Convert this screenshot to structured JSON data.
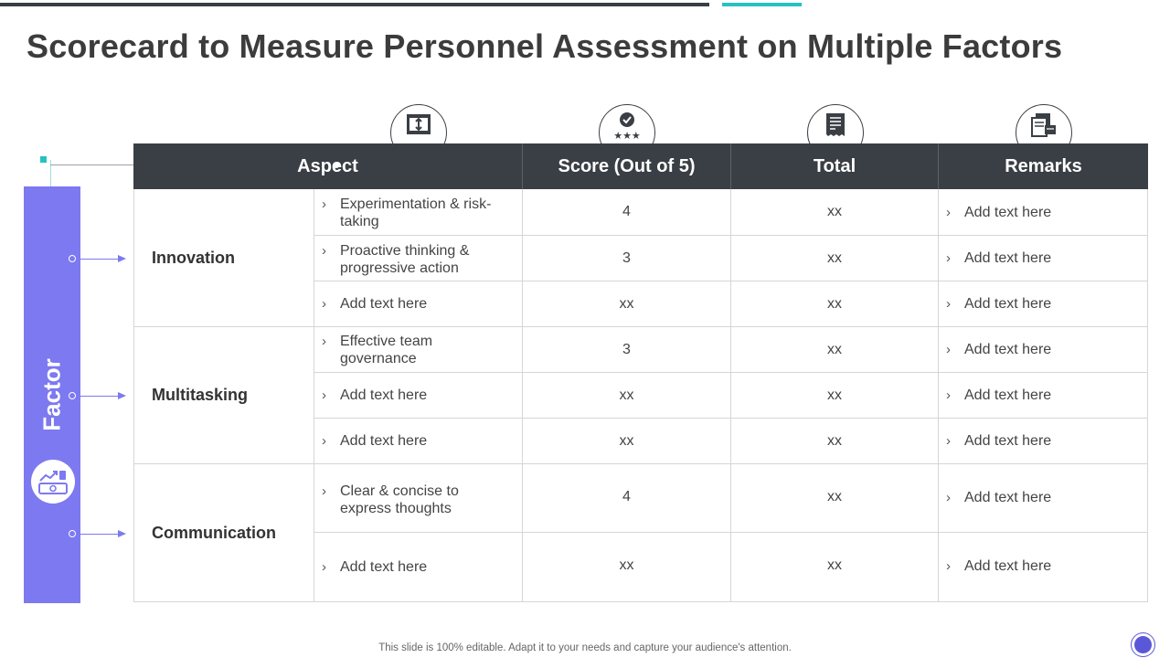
{
  "slide": {
    "title": "Scorecard to Measure Personnel Assessment on Multiple Factors",
    "footer": "This slide is 100% editable. Adapt it to your needs and capture your audience's attention.",
    "accent_color": "#7d79f0",
    "header_color": "#3a3f45",
    "teal_color": "#27c1c1"
  },
  "factor_bar": {
    "label": "Factor",
    "icon": "money-growth-icon"
  },
  "table": {
    "columns": [
      "Aspect",
      "Score (Out of 5)",
      "Total",
      "Remarks"
    ],
    "header_icons": [
      "window-expand-icon",
      "badge-rating-icon",
      "receipt-icon",
      "documents-icon"
    ],
    "groups": [
      {
        "factor": "Innovation",
        "rows": [
          {
            "aspect": "Experimentation & risk-taking",
            "score": "4",
            "total": "xx",
            "remark": "Add text here"
          },
          {
            "aspect": "Proactive thinking & progressive action",
            "score": "3",
            "total": "xx",
            "remark": "Add text here"
          },
          {
            "aspect": "Add text here",
            "score": "xx",
            "total": "xx",
            "remark": "Add text here"
          }
        ]
      },
      {
        "factor": "Multitasking",
        "rows": [
          {
            "aspect": "Effective team governance",
            "score": "3",
            "total": "xx",
            "remark": "Add text here"
          },
          {
            "aspect": "Add text here",
            "score": "xx",
            "total": "xx",
            "remark": "Add text here"
          },
          {
            "aspect": "Add text here",
            "score": "xx",
            "total": "xx",
            "remark": "Add text here"
          }
        ]
      },
      {
        "factor": "Communication",
        "rows": [
          {
            "aspect": "Clear & concise to express thoughts",
            "score": "4",
            "total": "xx",
            "remark": "Add text here"
          },
          {
            "aspect": "Add text here",
            "score": "xx",
            "total": "xx",
            "remark": "Add text here"
          }
        ]
      }
    ]
  }
}
